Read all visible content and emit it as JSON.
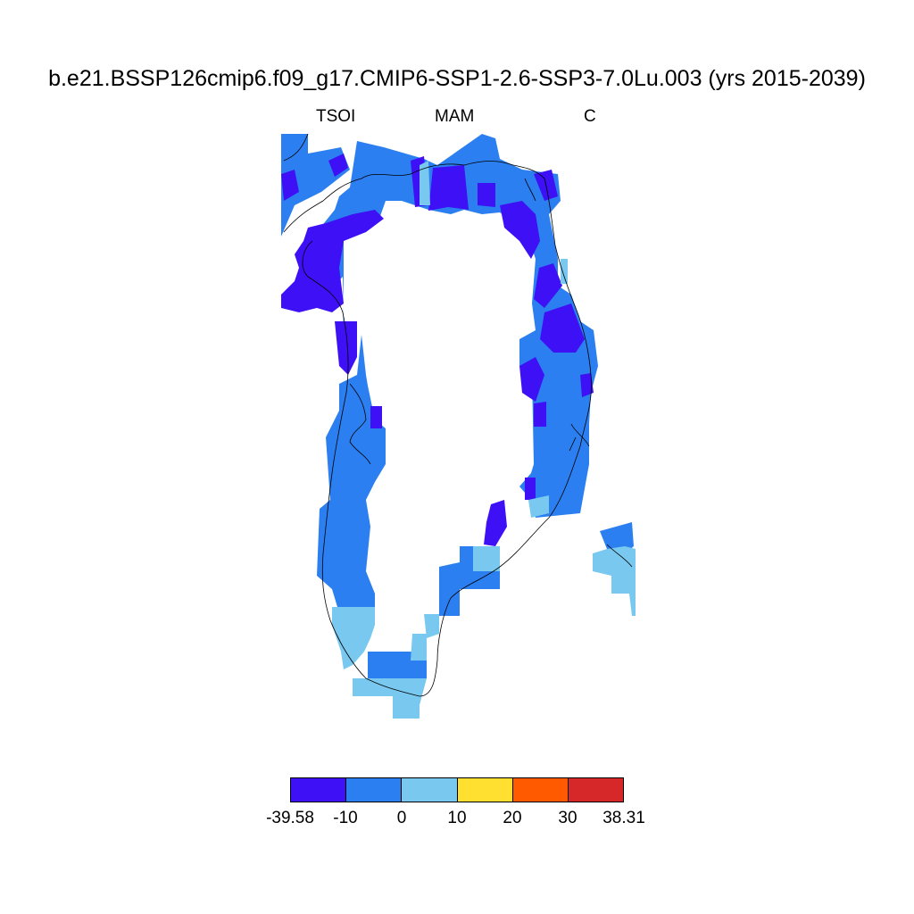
{
  "title": "b.e21.BSSP126cmip6.f09_g17.CMIP6-SSP1-2.6-SSP3-7.0Lu.003 (yrs 2015-2039)",
  "left_label": "TSOI",
  "center_label": "MAM",
  "right_label": "C",
  "colorbar": {
    "labels": [
      "-39.58",
      "-10",
      "0",
      "10",
      "20",
      "30",
      "38.31"
    ],
    "colors": [
      "#3d10f5",
      "#2b7ff0",
      "#79c8ef",
      "#ffe030",
      "#ff5a00",
      "#d62828"
    ]
  },
  "palette": {
    "deep": "#3d10f5",
    "mid": "#2b7ff0",
    "light": "#79c8ef"
  }
}
